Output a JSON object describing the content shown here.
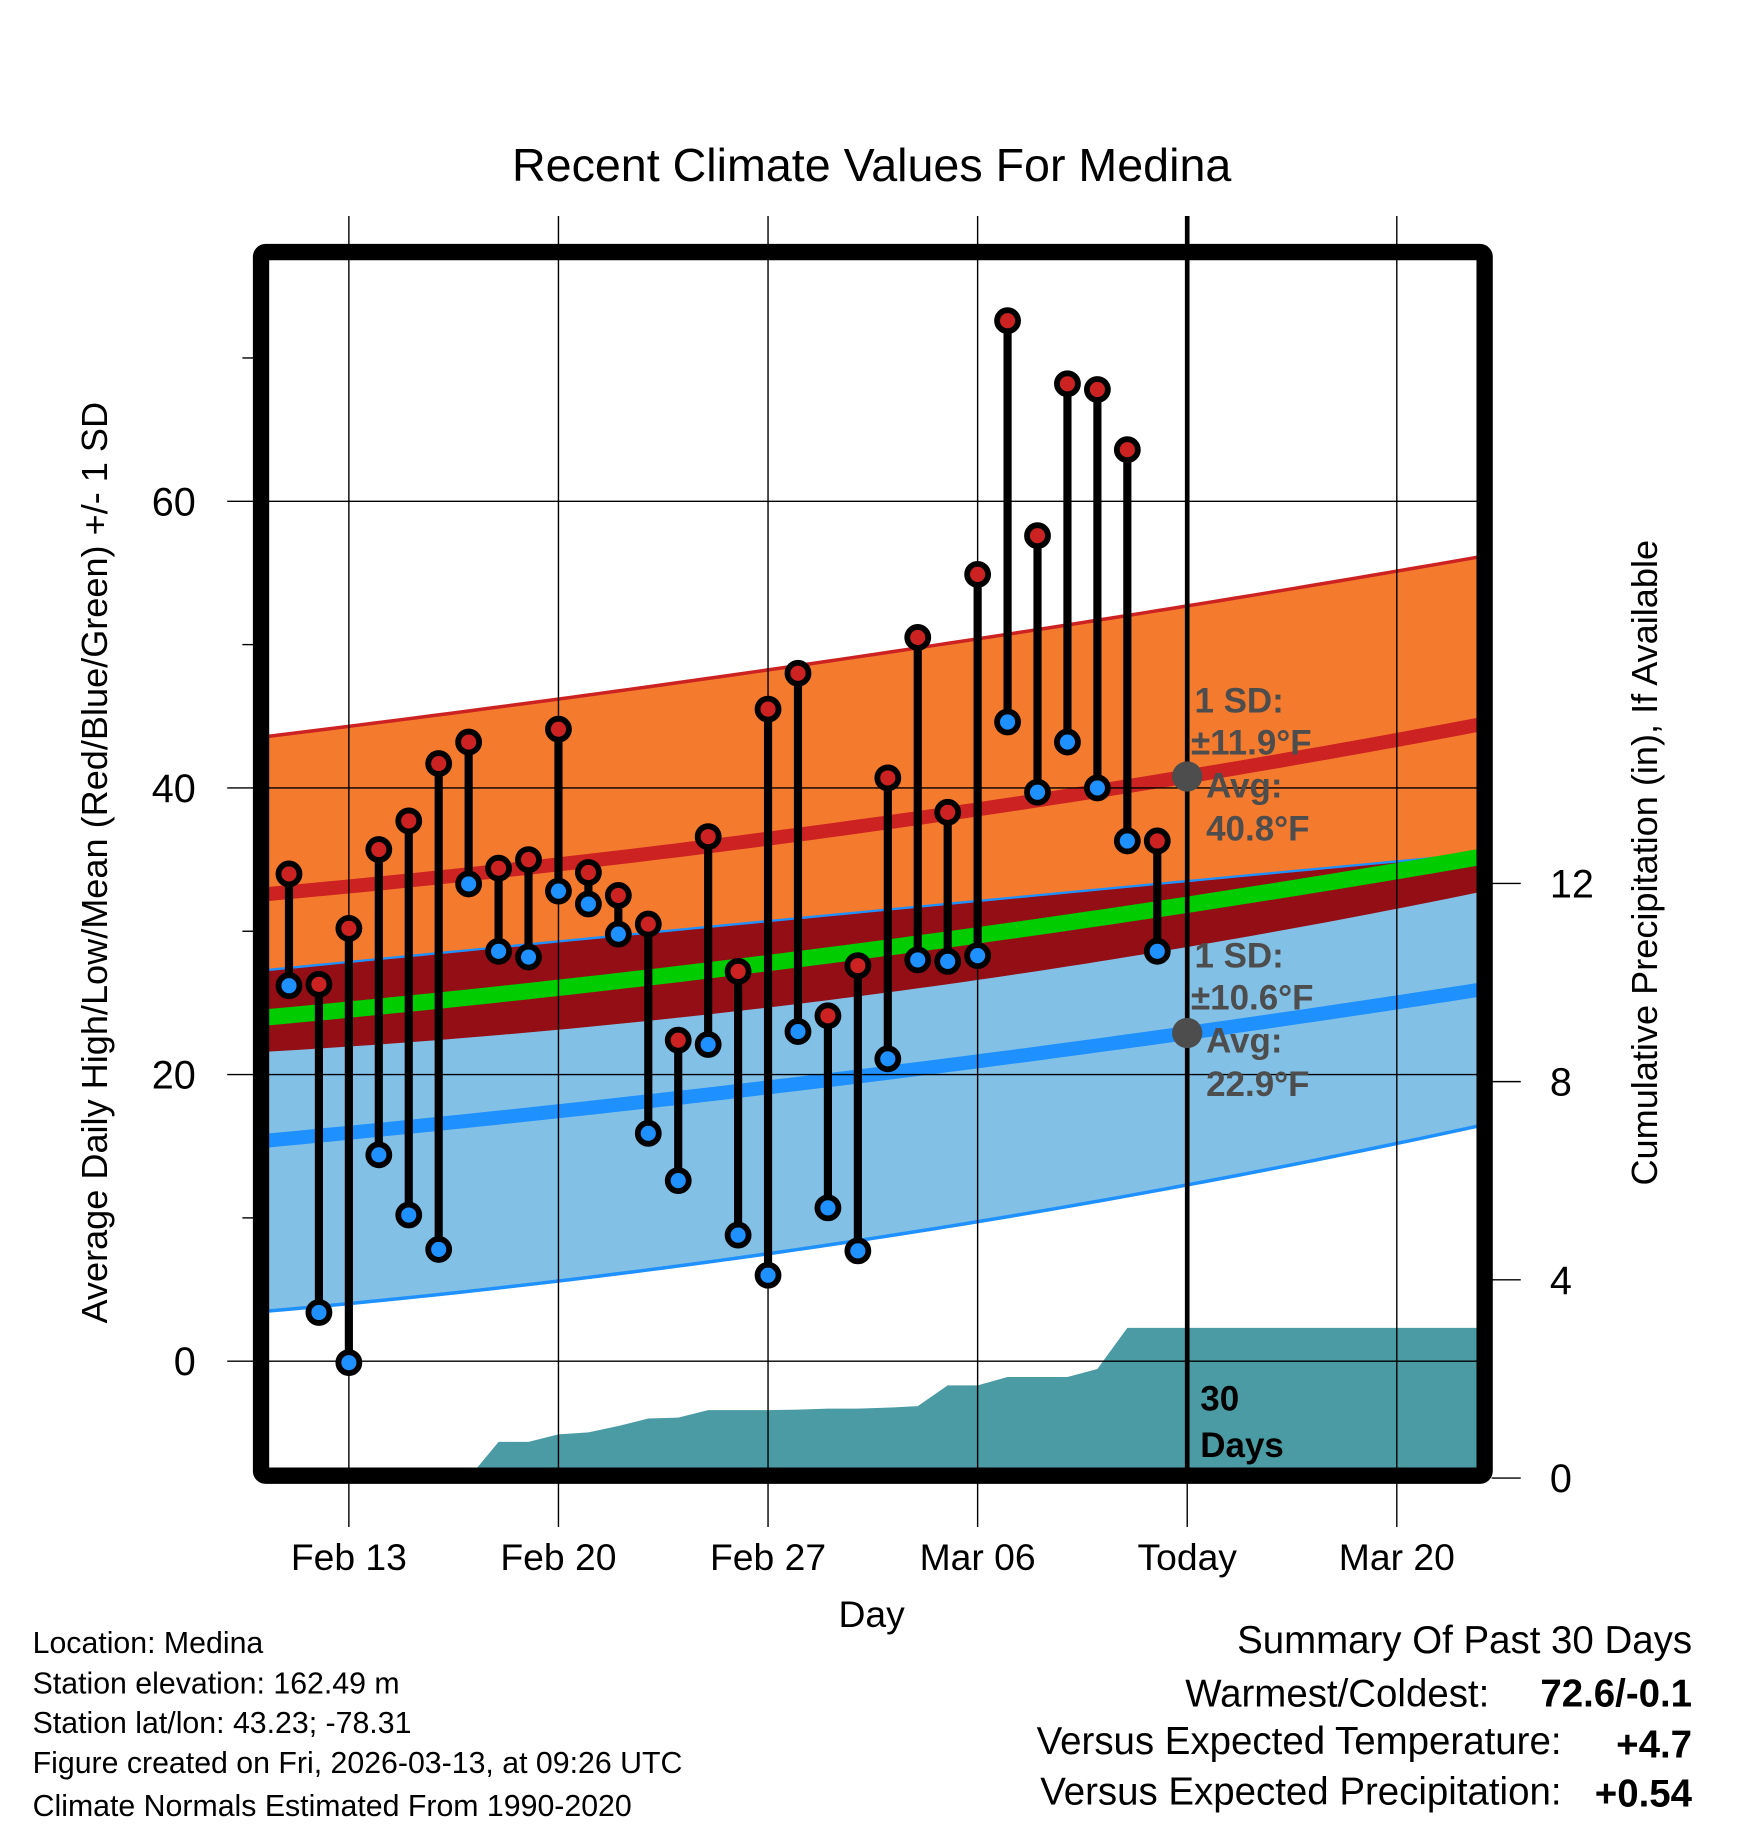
{
  "chart_data": {
    "type": "line",
    "title": "Recent Climate Values For Medina",
    "xlabel": "Day",
    "ylabel": "Average Daily High/Low/Mean (Red/Blue/Green) +/- 1 SD",
    "y2label": "Cumulative Precipitation (in), If Available",
    "ylim": [
      -7.5,
      76.9
    ],
    "y2lim": [
      0,
      24.6
    ],
    "yticks": [
      "0",
      "20",
      "40",
      "60"
    ],
    "yticks_values": [
      0,
      20,
      40,
      60
    ],
    "yminor_values": [
      10,
      30,
      50,
      70
    ],
    "y2ticks": [
      "0",
      "4",
      "8",
      "12"
    ],
    "y2ticks_values": [
      0,
      4,
      8,
      12
    ],
    "xticks": [
      "Feb 13",
      "Feb 20",
      "Feb 27",
      "Mar 06",
      "Today",
      "Mar 20"
    ],
    "xticks_day_index": [
      2,
      9,
      16,
      23,
      30,
      37
    ],
    "x_range_day_index": [
      -0.7,
      39.7
    ],
    "today_day_index": 30,
    "days": [
      "Feb 11",
      "Feb 12",
      "Feb 13",
      "Feb 14",
      "Feb 15",
      "Feb 16",
      "Feb 17",
      "Feb 18",
      "Feb 19",
      "Feb 20",
      "Feb 21",
      "Feb 22",
      "Feb 23",
      "Feb 24",
      "Feb 25",
      "Feb 26",
      "Feb 27",
      "Feb 28",
      "Mar 01",
      "Mar 02",
      "Mar 03",
      "Mar 04",
      "Mar 05",
      "Mar 06",
      "Mar 07",
      "Mar 08",
      "Mar 09",
      "Mar 10",
      "Mar 11",
      "Mar 12"
    ],
    "series": [
      {
        "name": "Daily High",
        "color": "#cc2222",
        "values": [
          34.0,
          26.3,
          30.2,
          35.7,
          37.7,
          41.7,
          43.2,
          34.4,
          35.0,
          44.1,
          34.1,
          32.5,
          30.5,
          22.4,
          36.6,
          27.2,
          45.5,
          48.0,
          24.1,
          27.6,
          40.7,
          50.5,
          38.3,
          54.9,
          72.6,
          57.6,
          68.2,
          67.8,
          63.6,
          36.3
        ]
      },
      {
        "name": "Daily Low",
        "color": "#1e90ff",
        "values": [
          26.2,
          3.4,
          -0.1,
          14.4,
          10.2,
          7.8,
          33.3,
          28.6,
          28.2,
          32.8,
          31.9,
          29.8,
          15.9,
          12.6,
          22.1,
          8.8,
          6.0,
          23.0,
          10.7,
          7.7,
          21.1,
          28.0,
          27.9,
          28.3,
          44.6,
          39.7,
          43.2,
          40.0,
          36.3,
          28.6
        ]
      },
      {
        "name": "Cumulative Precipitation",
        "color": "#4a9ba3",
        "values": [
          0,
          0,
          0,
          0,
          0,
          0,
          0,
          0.73,
          0.73,
          0.88,
          0.92,
          1.05,
          1.2,
          1.22,
          1.37,
          1.37,
          1.37,
          1.38,
          1.4,
          1.4,
          1.42,
          1.45,
          1.87,
          1.87,
          2.04,
          2.04,
          2.04,
          2.2,
          3.03,
          3.03
        ]
      }
    ],
    "normals": {
      "day_index": [
        -0.7,
        30,
        39.7
      ],
      "high_mean": [
        32.6,
        40.8,
        44.4
      ],
      "high_sd": [
        11.0,
        11.9,
        11.7
      ],
      "low_mean": [
        15.4,
        22.9,
        25.9
      ],
      "low_sd": [
        11.9,
        10.6,
        9.5
      ],
      "colors": {
        "high_band": "#f47a2e",
        "high_line": "#cc2222",
        "low_band": "#82c0e6",
        "low_line": "#1e90ff",
        "overlap": "#930f15",
        "mean_line": "#00cc00",
        "marker_gray": "#4d4d4d"
      }
    },
    "annotations": {
      "high_sd_label": "1 SD:",
      "high_sd_value": "±11.9°F",
      "high_avg_label": "Avg:",
      "high_avg_value": "40.8°F",
      "low_sd_label": "1 SD:",
      "low_sd_value": "±10.6°F",
      "low_avg_label": "Avg:",
      "low_avg_value": "22.9°F",
      "period_num": "30",
      "period_unit": "Days"
    }
  },
  "footer": {
    "location": "Location: Medina",
    "elevation": "Station elevation: 162.49 m",
    "latlon": "Station lat/lon: 43.23; -78.31",
    "created": "Figure created on Fri, 2026-03-13, at 09:26 UTC",
    "normals": "Climate Normals Estimated From 1990-2020"
  },
  "summary": {
    "title": "Summary Of Past 30 Days",
    "warmest_label": "Warmest/Coldest:",
    "warmest_value": "72.6/-0.1",
    "temp_label": "Versus Expected Temperature:",
    "temp_value": "+4.7",
    "temp_color": "#cc2222",
    "precip_label": "Versus Expected Precipitation:",
    "precip_value": "+0.54",
    "precip_color": "#00bb00"
  }
}
